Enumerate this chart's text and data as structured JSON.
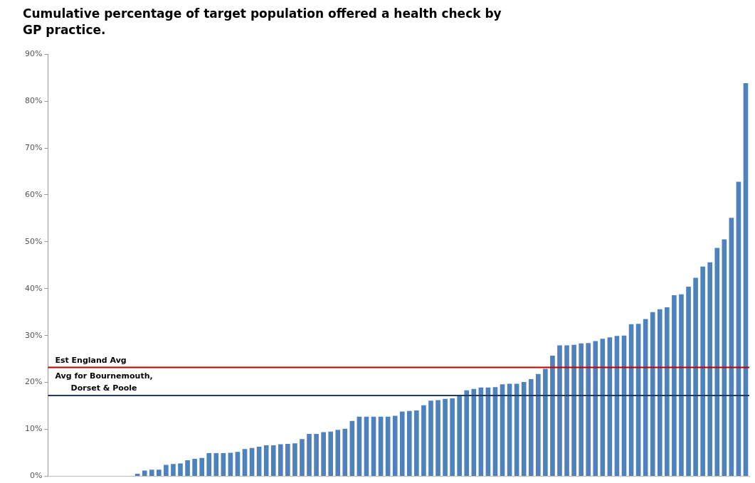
{
  "chart_data": {
    "type": "bar",
    "title": "Cumulative percentage of target population offered a health check by\nGP practice.",
    "categories": [
      null,
      null,
      null,
      null,
      null,
      null,
      null,
      null,
      null,
      null,
      null,
      null,
      null,
      null,
      null,
      null,
      null,
      null,
      null,
      null,
      null,
      null,
      null,
      null,
      null,
      null,
      null,
      null,
      null,
      null,
      null,
      null,
      null,
      null,
      null,
      null,
      null,
      null,
      null,
      null,
      null,
      null,
      null,
      null,
      null,
      null,
      null,
      null,
      null,
      null,
      null,
      null,
      null,
      null,
      null,
      null,
      null,
      null,
      null,
      null,
      null,
      null,
      null,
      null,
      null,
      null,
      null,
      null,
      null,
      null,
      null,
      null,
      null,
      null,
      null,
      null,
      null,
      null,
      null,
      null,
      null,
      null,
      null,
      null,
      null,
      null,
      null,
      null,
      null,
      null,
      null,
      null,
      null,
      null,
      null,
      null,
      null,
      null
    ],
    "values": [
      0,
      0,
      0,
      0,
      0,
      0,
      0,
      0,
      0,
      0,
      0,
      0,
      0.5,
      1.2,
      1.4,
      1.4,
      2.4,
      2.6,
      2.7,
      3.4,
      3.7,
      3.9,
      4.9,
      4.9,
      4.9,
      5.0,
      5.2,
      5.8,
      6.0,
      6.3,
      6.6,
      6.6,
      6.8,
      6.9,
      7.0,
      7.9,
      9.0,
      9.0,
      9.4,
      9.5,
      9.9,
      10.1,
      11.8,
      12.7,
      12.7,
      12.7,
      12.7,
      12.7,
      12.9,
      13.8,
      13.9,
      14.0,
      15.1,
      16.1,
      16.2,
      16.5,
      16.6,
      17.2,
      18.3,
      18.6,
      18.9,
      18.9,
      19.0,
      19.6,
      19.7,
      19.7,
      20.1,
      20.7,
      21.8,
      22.9,
      25.7,
      27.9,
      27.9,
      28.0,
      28.3,
      28.4,
      28.8,
      29.3,
      29.6,
      29.9,
      30.0,
      32.4,
      32.5,
      33.5,
      35.0,
      35.6,
      36.0,
      38.6,
      38.8,
      40.4,
      42.3,
      44.7,
      45.6,
      48.7,
      50.5,
      55.1,
      62.8,
      83.8
    ],
    "color": "#4f81bd",
    "ylim": [
      0,
      90
    ],
    "yticks": [
      {
        "value": 0,
        "label": "0%"
      },
      {
        "value": 10,
        "label": "10%"
      },
      {
        "value": 20,
        "label": "20%"
      },
      {
        "value": 30,
        "label": "30%"
      },
      {
        "value": 40,
        "label": "40%"
      },
      {
        "value": 50,
        "label": "50%"
      },
      {
        "value": 60,
        "label": "60%"
      },
      {
        "value": 70,
        "label": "70%"
      },
      {
        "value": 80,
        "label": "80%"
      },
      {
        "value": 90,
        "label": "90%"
      }
    ],
    "ref_lines": [
      {
        "axis": "y",
        "value": 23.2,
        "label": "Est England Avg",
        "color": "#c00000"
      },
      {
        "axis": "y",
        "value": 17.2,
        "label": "Avg for Bournemouth,\nDorset & Poole",
        "color": "#1f3864"
      }
    ],
    "tick_labels": "y",
    "grid": false,
    "legend": false
  }
}
